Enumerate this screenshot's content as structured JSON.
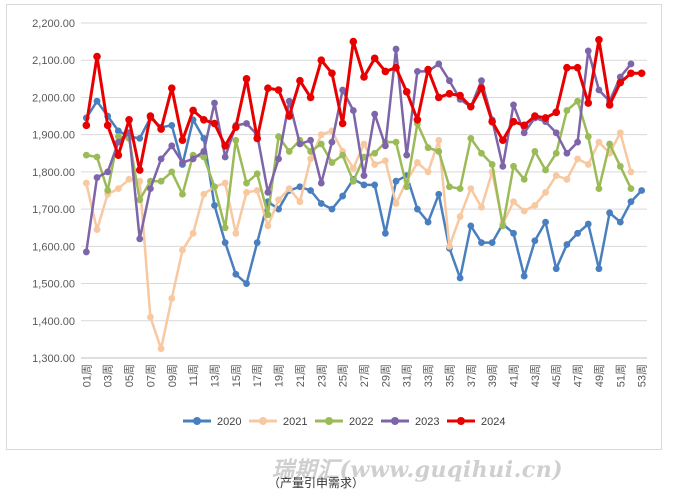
{
  "chart_data": {
    "type": "line",
    "x": [
      "01周",
      "02周",
      "03周",
      "04周",
      "05周",
      "06周",
      "07周",
      "08周",
      "09周",
      "10周",
      "11周",
      "12周",
      "13周",
      "14周",
      "15周",
      "16周",
      "17周",
      "18周",
      "19周",
      "20周",
      "21周",
      "22周",
      "23周",
      "24周",
      "25周",
      "26周",
      "27周",
      "28周",
      "29周",
      "30周",
      "31周",
      "32周",
      "33周",
      "34周",
      "35周",
      "36周",
      "37周",
      "38周",
      "39周",
      "40周",
      "41周",
      "42周",
      "43周",
      "44周",
      "45周",
      "46周",
      "47周",
      "48周",
      "49周",
      "50周",
      "51周",
      "52周",
      "53周"
    ],
    "x_tick_labels": [
      "01周",
      "03周",
      "05周",
      "07周",
      "09周",
      "11周",
      "13周",
      "15周",
      "17周",
      "19周",
      "21周",
      "23周",
      "25周",
      "27周",
      "29周",
      "31周",
      "33周",
      "35周",
      "37周",
      "39周",
      "41周",
      "43周",
      "45周",
      "47周",
      "49周",
      "51周",
      "53周"
    ],
    "ylim": [
      1300,
      2200
    ],
    "yticks": [
      "1,300.00",
      "1,400.00",
      "1,500.00",
      "1,600.00",
      "1,700.00",
      "1,800.00",
      "1,900.00",
      "2,000.00",
      "2,100.00",
      "2,200.00"
    ],
    "grid": "horizontal",
    "legend_position": "bottom",
    "series": [
      {
        "name": "2020",
        "color": "#4a7fbf",
        "values": [
          1945,
          1990,
          1950,
          1910,
          1895,
          1890,
          1945,
          1920,
          1925,
          1820,
          1940,
          1890,
          1710,
          1610,
          1525,
          1500,
          1610,
          1720,
          1700,
          1750,
          1760,
          1750,
          1715,
          1700,
          1735,
          1780,
          1765,
          1765,
          1635,
          1775,
          1790,
          1700,
          1665,
          1740,
          1595,
          1515,
          1655,
          1610,
          1610,
          1660,
          1635,
          1520,
          1615,
          1665,
          1540,
          1605,
          1635,
          1660,
          1540,
          1690,
          1665,
          1720,
          1750
        ]
      },
      {
        "name": "2021",
        "color": "#f8c8a0",
        "values": [
          1770,
          1645,
          1740,
          1755,
          1780,
          1775,
          1410,
          1325,
          1460,
          1590,
          1635,
          1740,
          1760,
          1770,
          1635,
          1745,
          1750,
          1655,
          1725,
          1755,
          1720,
          1835,
          1900,
          1910,
          1855,
          1810,
          1875,
          1820,
          1830,
          1715,
          1775,
          1825,
          1800,
          1885,
          1600,
          1680,
          1755,
          1705,
          1800,
          1660,
          1720,
          1695,
          1710,
          1745,
          1790,
          1780,
          1835,
          1820,
          1880,
          1850,
          1905,
          1800,
          null
        ]
      },
      {
        "name": "2022",
        "color": "#9bbb59",
        "values": [
          1845,
          1840,
          1750,
          1895,
          1890,
          1725,
          1775,
          1775,
          1800,
          1740,
          1845,
          1840,
          1760,
          1650,
          1885,
          1770,
          1795,
          1685,
          1895,
          1855,
          1885,
          1855,
          1875,
          1825,
          1845,
          1775,
          1840,
          1850,
          1880,
          1880,
          1760,
          1930,
          1865,
          1855,
          1760,
          1755,
          1890,
          1850,
          1820,
          1655,
          1815,
          1780,
          1855,
          1805,
          1850,
          1965,
          1990,
          1895,
          1755,
          1875,
          1815,
          1755,
          null
        ]
      },
      {
        "name": "2023",
        "color": "#7e64a8",
        "values": [
          1585,
          1785,
          1800,
          1880,
          1905,
          1620,
          1755,
          1835,
          1870,
          1825,
          1835,
          1855,
          1985,
          1840,
          1925,
          1930,
          1900,
          1745,
          1835,
          1990,
          1875,
          1885,
          1770,
          1880,
          2020,
          1965,
          1790,
          1955,
          1870,
          2130,
          1845,
          2070,
          2070,
          2090,
          2045,
          1995,
          1975,
          2045,
          1940,
          1815,
          1980,
          1905,
          1945,
          1935,
          1905,
          1850,
          1880,
          2125,
          2020,
          1990,
          2055,
          2090,
          null
        ]
      },
      {
        "name": "2024",
        "color": "#e80000",
        "values": [
          1925,
          2110,
          1925,
          1845,
          1940,
          1805,
          1950,
          1915,
          2025,
          1885,
          1965,
          1940,
          1930,
          1870,
          1920,
          2050,
          1890,
          2025,
          2020,
          1950,
          2045,
          2000,
          2100,
          2065,
          1930,
          2150,
          2055,
          2105,
          2070,
          2080,
          2015,
          1940,
          2075,
          2000,
          2010,
          2005,
          1975,
          2025,
          1935,
          1885,
          1935,
          1925,
          1950,
          1945,
          1960,
          2080,
          2080,
          1985,
          2155,
          1980,
          2040,
          2065,
          2065
        ]
      }
    ]
  },
  "watermark": "瑞期汇(www.guqihui.cn)",
  "caption": "（产量引申需求）"
}
